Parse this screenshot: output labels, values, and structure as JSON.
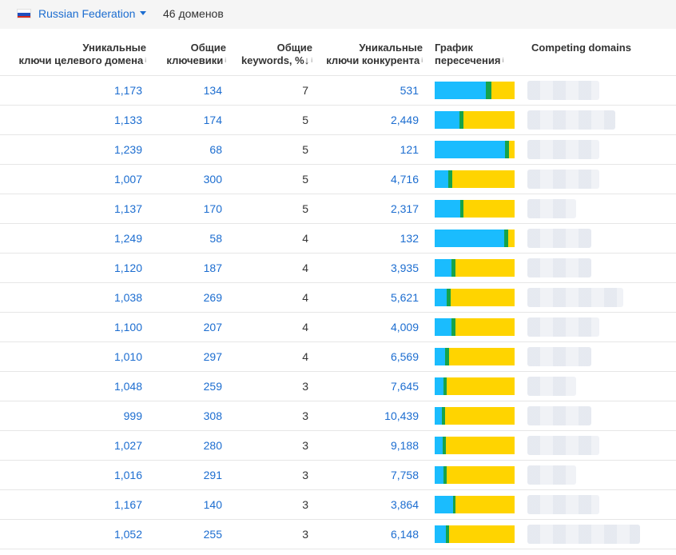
{
  "filter": {
    "country": "Russian Federation",
    "domains_count": "46 доменов",
    "flag_colors": [
      "#ffffff",
      "#1f4fbf",
      "#d52b1e"
    ]
  },
  "columns": {
    "c1": "Уникальные ключи целевого домена",
    "c2": "Общие ключевики",
    "c3": "Общие keywords, %",
    "c4": "Уникальные ключи конкурента",
    "c5": "График пересечения",
    "c6": "Competing domains",
    "c1a": "Уникальные",
    "c1b": "ключи целевого домена",
    "c2a": "Общие",
    "c2b": "ключевики",
    "c3a": "Общие",
    "c3b": "keywords, %",
    "c4a": "Уникальные",
    "c4b": "ключи конкурента",
    "c5a": "График",
    "c5b": "пересечения",
    "info_glyph": "i",
    "sort_glyph": "↓"
  },
  "bar_colors": {
    "target": "#1abcfe",
    "common": "#16a34a",
    "competitor": "#ffd400"
  },
  "rows": [
    {
      "unique_target": "1,173",
      "common": "134",
      "common_pct": "7",
      "unique_competitor": "531",
      "bar_share": [
        0.64,
        0.07,
        0.29
      ],
      "domain_blur": 0.56
    },
    {
      "unique_target": "1,133",
      "common": "174",
      "common_pct": "5",
      "unique_competitor": "2,449",
      "bar_share": [
        0.31,
        0.05,
        0.64
      ],
      "domain_blur": 0.69
    },
    {
      "unique_target": "1,239",
      "common": "68",
      "common_pct": "5",
      "unique_competitor": "121",
      "bar_share": [
        0.88,
        0.05,
        0.07
      ],
      "domain_blur": 0.56
    },
    {
      "unique_target": "1,007",
      "common": "300",
      "common_pct": "5",
      "unique_competitor": "4,716",
      "bar_share": [
        0.17,
        0.05,
        0.78
      ],
      "domain_blur": 0.56
    },
    {
      "unique_target": "1,137",
      "common": "170",
      "common_pct": "5",
      "unique_competitor": "2,317",
      "bar_share": [
        0.32,
        0.04,
        0.64
      ],
      "domain_blur": 0.38
    },
    {
      "unique_target": "1,249",
      "common": "58",
      "common_pct": "4",
      "unique_competitor": "132",
      "bar_share": [
        0.87,
        0.05,
        0.08
      ],
      "domain_blur": 0.5
    },
    {
      "unique_target": "1,120",
      "common": "187",
      "common_pct": "4",
      "unique_competitor": "3,935",
      "bar_share": [
        0.21,
        0.05,
        0.74
      ],
      "domain_blur": 0.5
    },
    {
      "unique_target": "1,038",
      "common": "269",
      "common_pct": "4",
      "unique_competitor": "5,621",
      "bar_share": [
        0.15,
        0.05,
        0.8
      ],
      "domain_blur": 0.75
    },
    {
      "unique_target": "1,100",
      "common": "207",
      "common_pct": "4",
      "unique_competitor": "4,009",
      "bar_share": [
        0.21,
        0.05,
        0.74
      ],
      "domain_blur": 0.56
    },
    {
      "unique_target": "1,010",
      "common": "297",
      "common_pct": "4",
      "unique_competitor": "6,569",
      "bar_share": [
        0.13,
        0.05,
        0.82
      ],
      "domain_blur": 0.5
    },
    {
      "unique_target": "1,048",
      "common": "259",
      "common_pct": "3",
      "unique_competitor": "7,645",
      "bar_share": [
        0.11,
        0.04,
        0.85
      ],
      "domain_blur": 0.38
    },
    {
      "unique_target": "999",
      "common": "308",
      "common_pct": "3",
      "unique_competitor": "10,439",
      "bar_share": [
        0.09,
        0.04,
        0.87
      ],
      "domain_blur": 0.5
    },
    {
      "unique_target": "1,027",
      "common": "280",
      "common_pct": "3",
      "unique_competitor": "9,188",
      "bar_share": [
        0.1,
        0.04,
        0.86
      ],
      "domain_blur": 0.56
    },
    {
      "unique_target": "1,016",
      "common": "291",
      "common_pct": "3",
      "unique_competitor": "7,758",
      "bar_share": [
        0.11,
        0.04,
        0.85
      ],
      "domain_blur": 0.38
    },
    {
      "unique_target": "1,167",
      "common": "140",
      "common_pct": "3",
      "unique_competitor": "3,864",
      "bar_share": [
        0.23,
        0.03,
        0.74
      ],
      "domain_blur": 0.56
    },
    {
      "unique_target": "1,052",
      "common": "255",
      "common_pct": "3",
      "unique_competitor": "6,148",
      "bar_share": [
        0.14,
        0.04,
        0.82
      ],
      "domain_blur": 0.88
    }
  ]
}
